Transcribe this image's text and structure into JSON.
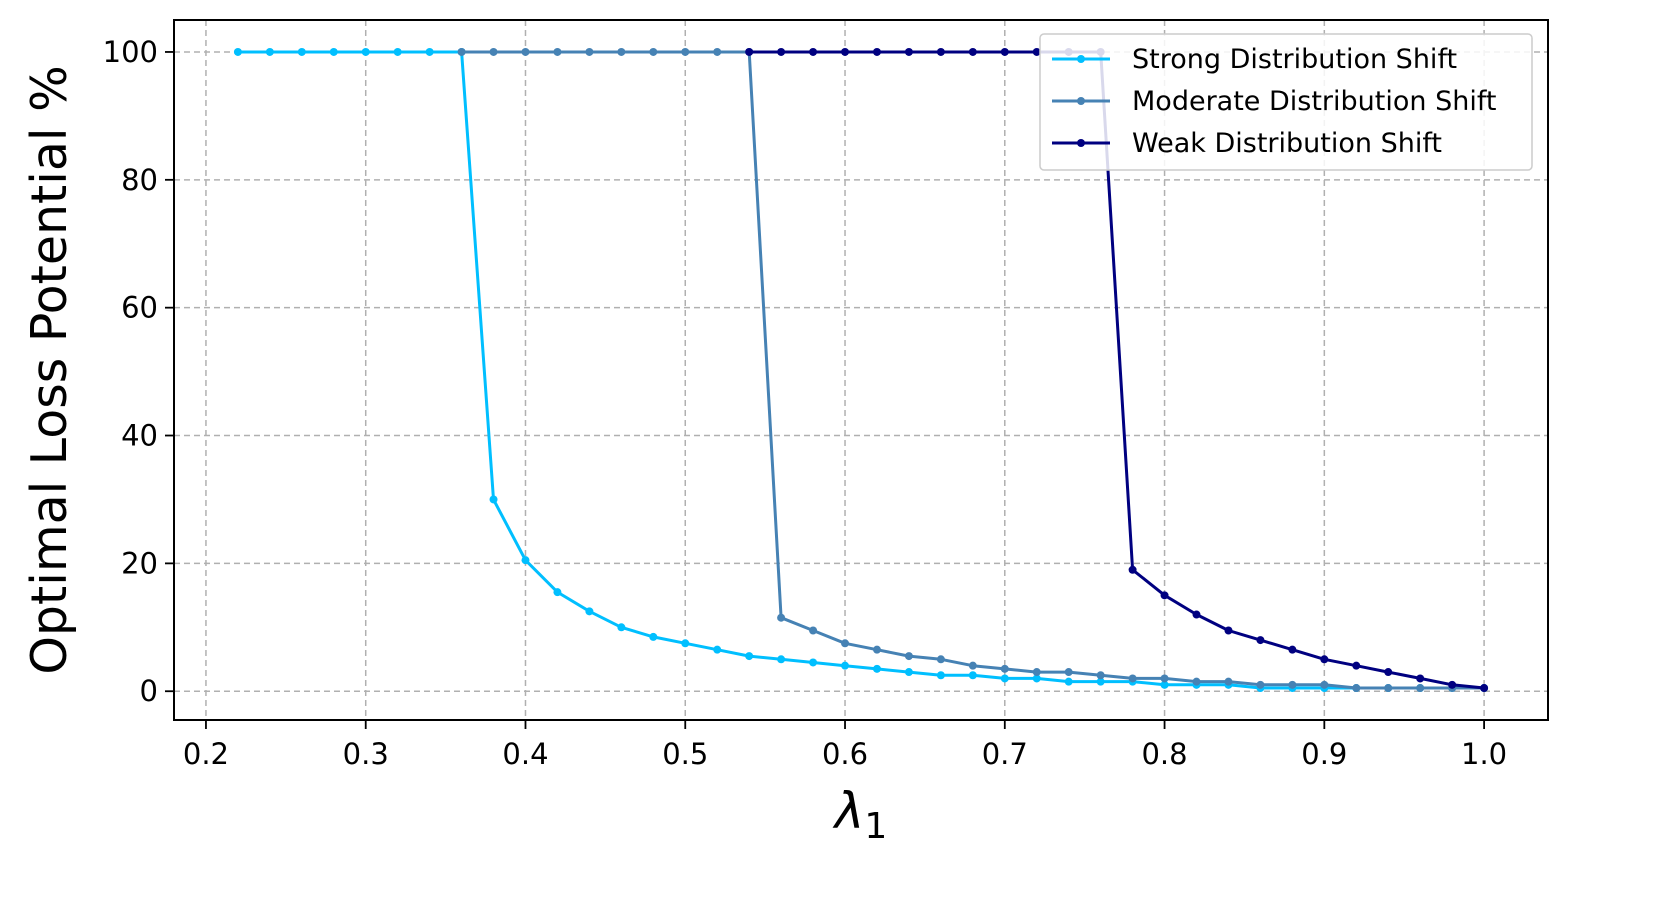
{
  "chart_data": {
    "type": "line",
    "title": "",
    "xlabel": "λ",
    "xlabel_subscript": "1",
    "ylabel": "Optimal Loss Potential %",
    "xlim": [
      0.18,
      1.04
    ],
    "ylim": [
      -4.5,
      105
    ],
    "xticks": [
      0.2,
      0.3,
      0.4,
      0.5,
      0.6,
      0.7,
      0.8,
      0.9,
      1.0
    ],
    "xtick_labels": [
      "0.2",
      "0.3",
      "0.4",
      "0.5",
      "0.6",
      "0.7",
      "0.8",
      "0.9",
      "1.0"
    ],
    "yticks": [
      0,
      20,
      40,
      60,
      80,
      100
    ],
    "ytick_labels": [
      "0",
      "20",
      "40",
      "60",
      "80",
      "100"
    ],
    "grid": true,
    "legend_position": "top-right",
    "series": [
      {
        "name": "Strong Distribution Shift",
        "color": "#00bfff",
        "x": [
          0.22,
          0.24,
          0.26,
          0.28,
          0.3,
          0.32,
          0.34,
          0.36,
          0.38,
          0.4,
          0.42,
          0.44,
          0.46,
          0.48,
          0.5,
          0.52,
          0.54,
          0.56,
          0.58,
          0.6,
          0.62,
          0.64,
          0.66,
          0.68,
          0.7,
          0.72,
          0.74,
          0.76,
          0.78,
          0.8,
          0.82,
          0.84,
          0.86,
          0.88,
          0.9,
          0.92,
          0.94,
          0.96,
          0.98,
          1.0
        ],
        "values": [
          100,
          100,
          100,
          100,
          100,
          100,
          100,
          100,
          30,
          20.5,
          15.5,
          12.5,
          10,
          8.5,
          7.5,
          6.5,
          5.5,
          5,
          4.5,
          4,
          3.5,
          3,
          2.5,
          2.5,
          2,
          2,
          1.5,
          1.5,
          1.5,
          1,
          1,
          1,
          0.5,
          0.5,
          0.5,
          0.5,
          0.5,
          0.5,
          0.5,
          0.5
        ]
      },
      {
        "name": "Moderate Distribution Shift",
        "color": "#4682b4",
        "x": [
          0.36,
          0.38,
          0.4,
          0.42,
          0.44,
          0.46,
          0.48,
          0.5,
          0.52,
          0.54,
          0.56,
          0.58,
          0.6,
          0.62,
          0.64,
          0.66,
          0.68,
          0.7,
          0.72,
          0.74,
          0.76,
          0.78,
          0.8,
          0.82,
          0.84,
          0.86,
          0.88,
          0.9,
          0.92,
          0.94,
          0.96,
          0.98,
          1.0
        ],
        "values": [
          100,
          100,
          100,
          100,
          100,
          100,
          100,
          100,
          100,
          100,
          11.5,
          9.5,
          7.5,
          6.5,
          5.5,
          5,
          4,
          3.5,
          3,
          3,
          2.5,
          2,
          2,
          1.5,
          1.5,
          1,
          1,
          1,
          0.5,
          0.5,
          0.5,
          0.5,
          0.5
        ]
      },
      {
        "name": "Weak Distribution Shift",
        "color": "#000080",
        "x": [
          0.54,
          0.56,
          0.58,
          0.6,
          0.62,
          0.64,
          0.66,
          0.68,
          0.7,
          0.72,
          0.74,
          0.76,
          0.78,
          0.8,
          0.82,
          0.84,
          0.86,
          0.88,
          0.9,
          0.92,
          0.94,
          0.96,
          0.98,
          1.0
        ],
        "values": [
          100,
          100,
          100,
          100,
          100,
          100,
          100,
          100,
          100,
          100,
          100,
          100,
          19,
          15,
          12,
          9.5,
          8,
          6.5,
          5,
          4,
          3,
          2,
          1,
          0.5
        ]
      }
    ]
  }
}
